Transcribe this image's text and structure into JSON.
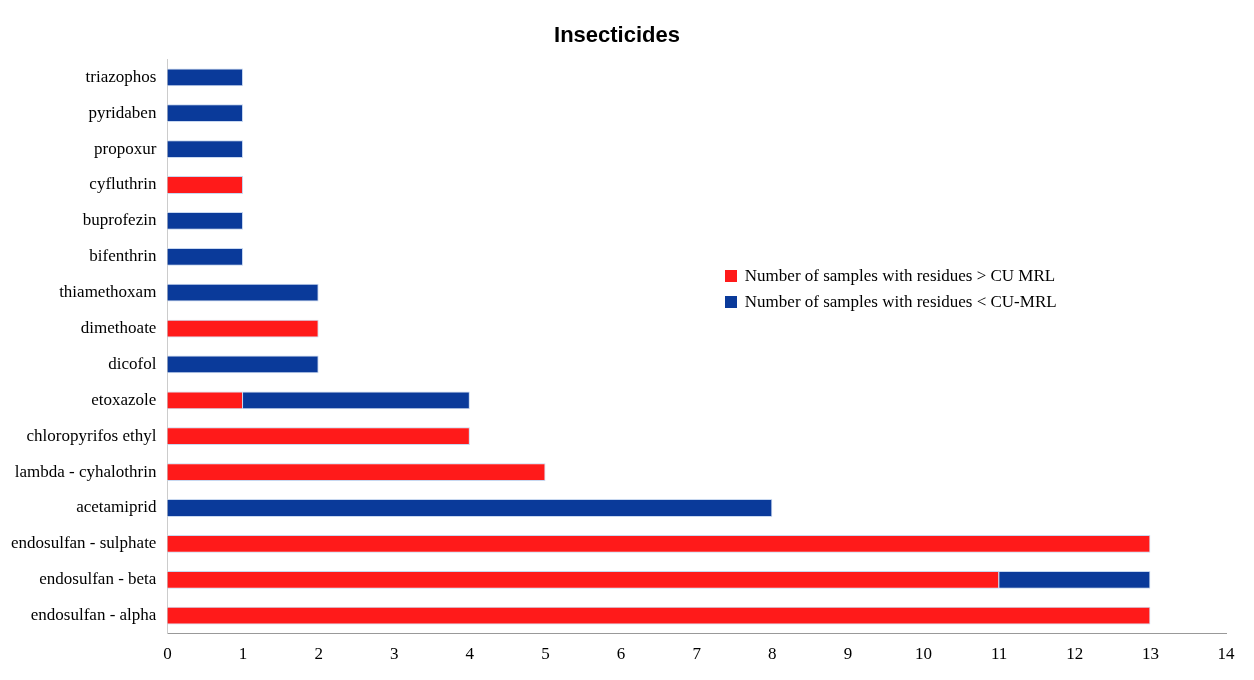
{
  "chart_data": {
    "type": "bar",
    "title": "Insecticides",
    "orientation": "horizontal",
    "stacked": true,
    "categories": [
      "triazophos",
      "pyridaben",
      "propoxur",
      "cyfluthrin",
      "buprofezin",
      "bifenthrin",
      "thiamethoxam",
      "dimethoate",
      "dicofol",
      "etoxazole",
      "chloropyrifos ethyl",
      "lambda - cyhalothrin",
      "acetamiprid",
      "endosulfan - sulphate",
      "endosulfan - beta",
      "endosulfan - alpha"
    ],
    "series": [
      {
        "name": "Number of samples with residues > CU MRL",
        "color": "#ff1a1a",
        "values": [
          0,
          0,
          0,
          1,
          0,
          0,
          0,
          2,
          0,
          1,
          4,
          5,
          0,
          13,
          11,
          13
        ]
      },
      {
        "name": "Number of samples with residues < CU-MRL",
        "color": "#0a3a9a",
        "values": [
          1,
          1,
          1,
          0,
          1,
          1,
          2,
          0,
          2,
          3,
          0,
          0,
          8,
          0,
          2,
          0
        ]
      }
    ],
    "xlim": [
      0,
      14
    ],
    "xticks": [
      0,
      1,
      2,
      3,
      4,
      5,
      6,
      7,
      8,
      9,
      10,
      11,
      12,
      13,
      14
    ],
    "grid": false,
    "legend": "right"
  }
}
